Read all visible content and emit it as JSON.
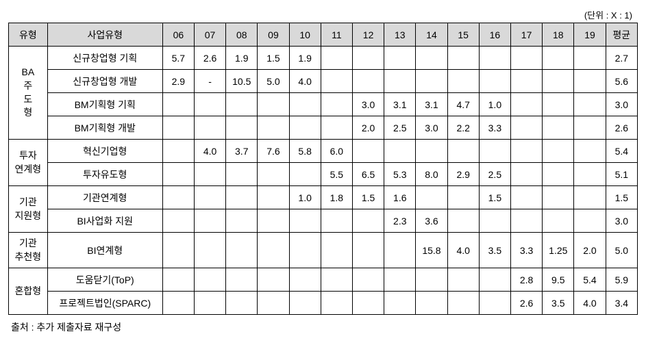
{
  "unit_label": "(단위 : X : 1)",
  "footnote": "출처 : 추가 제출자료 재구성",
  "headers": {
    "type1": "유형",
    "type2": "사업유형",
    "y06": "06",
    "y07": "07",
    "y08": "08",
    "y09": "09",
    "y10": "10",
    "y11": "11",
    "y12": "12",
    "y13": "13",
    "y14": "14",
    "y15": "15",
    "y16": "16",
    "y17": "17",
    "y18": "18",
    "y19": "19",
    "avg": "평균"
  },
  "groups": {
    "ba": "BA\n주\n도\n형",
    "invest": "투자\n연계형",
    "inst_support": "기관\n지원형",
    "inst_rec": "기관\n추천형",
    "mixed": "혼합형"
  },
  "rows": {
    "r0": {
      "label": "신규창업형 기획",
      "c06": "5.7",
      "c07": "2.6",
      "c08": "1.9",
      "c09": "1.5",
      "c10": "1.9",
      "c11": "",
      "c12": "",
      "c13": "",
      "c14": "",
      "c15": "",
      "c16": "",
      "c17": "",
      "c18": "",
      "c19": "",
      "avg": "2.7"
    },
    "r1": {
      "label": "신규창업형 개발",
      "c06": "2.9",
      "c07": "-",
      "c08": "10.5",
      "c09": "5.0",
      "c10": "4.0",
      "c11": "",
      "c12": "",
      "c13": "",
      "c14": "",
      "c15": "",
      "c16": "",
      "c17": "",
      "c18": "",
      "c19": "",
      "avg": "5.6"
    },
    "r2": {
      "label": "BM기획형 기획",
      "c06": "",
      "c07": "",
      "c08": "",
      "c09": "",
      "c10": "",
      "c11": "",
      "c12": "3.0",
      "c13": "3.1",
      "c14": "3.1",
      "c15": "4.7",
      "c16": "1.0",
      "c17": "",
      "c18": "",
      "c19": "",
      "avg": "3.0"
    },
    "r3": {
      "label": "BM기획형 개발",
      "c06": "",
      "c07": "",
      "c08": "",
      "c09": "",
      "c10": "",
      "c11": "",
      "c12": "2.0",
      "c13": "2.5",
      "c14": "3.0",
      "c15": "2.2",
      "c16": "3.3",
      "c17": "",
      "c18": "",
      "c19": "",
      "avg": "2.6"
    },
    "r4": {
      "label": "혁신기업형",
      "c06": "",
      "c07": "4.0",
      "c08": "3.7",
      "c09": "7.6",
      "c10": "5.8",
      "c11": "6.0",
      "c12": "",
      "c13": "",
      "c14": "",
      "c15": "",
      "c16": "",
      "c17": "",
      "c18": "",
      "c19": "",
      "avg": "5.4"
    },
    "r5": {
      "label": "투자유도형",
      "c06": "",
      "c07": "",
      "c08": "",
      "c09": "",
      "c10": "",
      "c11": "5.5",
      "c12": "6.5",
      "c13": "5.3",
      "c14": "8.0",
      "c15": "2.9",
      "c16": "2.5",
      "c17": "",
      "c18": "",
      "c19": "",
      "avg": "5.1"
    },
    "r6": {
      "label": "기관연계형",
      "c06": "",
      "c07": "",
      "c08": "",
      "c09": "",
      "c10": "1.0",
      "c11": "1.8",
      "c12": "1.5",
      "c13": "1.6",
      "c14": "",
      "c15": "",
      "c16": "1.5",
      "c17": "",
      "c18": "",
      "c19": "",
      "avg": "1.5"
    },
    "r7": {
      "label": "BI사업화 지원",
      "c06": "",
      "c07": "",
      "c08": "",
      "c09": "",
      "c10": "",
      "c11": "",
      "c12": "",
      "c13": "2.3",
      "c14": "3.6",
      "c15": "",
      "c16": "",
      "c17": "",
      "c18": "",
      "c19": "",
      "avg": "3.0"
    },
    "r8": {
      "label": "BI연계형",
      "c06": "",
      "c07": "",
      "c08": "",
      "c09": "",
      "c10": "",
      "c11": "",
      "c12": "",
      "c13": "",
      "c14": "15.8",
      "c15": "4.0",
      "c16": "3.5",
      "c17": "3.3",
      "c18": "1.25",
      "c19": "2.0",
      "avg": "5.0"
    },
    "r9": {
      "label": "도움닫기(ToP)",
      "c06": "",
      "c07": "",
      "c08": "",
      "c09": "",
      "c10": "",
      "c11": "",
      "c12": "",
      "c13": "",
      "c14": "",
      "c15": "",
      "c16": "",
      "c17": "2.8",
      "c18": "9.5",
      "c19": "5.4",
      "avg": "5.9"
    },
    "r10": {
      "label": "프로젝트법인(SPARC)",
      "c06": "",
      "c07": "",
      "c08": "",
      "c09": "",
      "c10": "",
      "c11": "",
      "c12": "",
      "c13": "",
      "c14": "",
      "c15": "",
      "c16": "",
      "c17": "2.6",
      "c18": "3.5",
      "c19": "4.0",
      "avg": "3.4"
    }
  },
  "style": {
    "header_bg": "#d9d9d9",
    "border_color": "#000000",
    "font_size_cell": 14,
    "font_size_unit": 13
  }
}
